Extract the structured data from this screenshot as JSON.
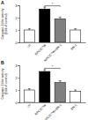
{
  "chart_data": [
    {
      "type": "bar",
      "title": "A",
      "y_label": [
        "Caspase-3-like activity",
        "(fold of control)"
      ],
      "categories": [
        "LH",
        "NPC/CTW",
        "NPC/CTW+SN-1",
        "SN-1"
      ],
      "values": [
        1.0,
        2.7,
        1.9,
        1.0
      ],
      "errors": [
        0.1,
        0.15,
        0.15,
        0.1
      ],
      "colors": [
        "#ffffff",
        "#000000",
        "#808080",
        "#ffffff"
      ],
      "ylim": [
        0,
        3
      ],
      "yticks": [
        0,
        1,
        2,
        3
      ],
      "annotations": [
        "*"
      ]
    },
    {
      "type": "bar",
      "title": "B",
      "y_label": [
        "Caspase-3-like activity",
        "(fold of control)"
      ],
      "categories": [
        "LH",
        "NPC/CTW",
        "NPC/CTW+SN-1",
        "SN-1"
      ],
      "values": [
        1.0,
        2.5,
        1.6,
        0.9
      ],
      "errors": [
        0.1,
        0.15,
        0.15,
        0.1
      ],
      "colors": [
        "#ffffff",
        "#000000",
        "#808080",
        "#ffffff"
      ],
      "ylim": [
        0,
        3
      ],
      "yticks": [
        0,
        1,
        2,
        3
      ],
      "annotations": [
        "*"
      ]
    }
  ]
}
